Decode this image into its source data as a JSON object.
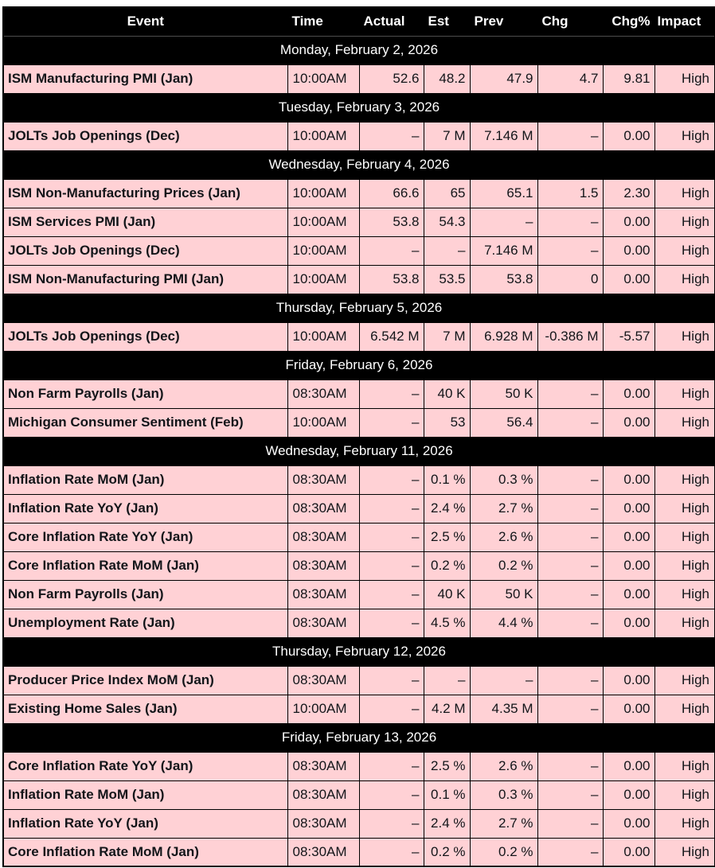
{
  "colors": {
    "header_bg": "#000000",
    "header_text": "#ffffff",
    "date_row_bg": "#000000",
    "date_row_text": "#ffffff",
    "event_row_bg": "#ffd1d5",
    "event_row_text": "#121519",
    "grid_border": "#000000"
  },
  "table": {
    "columns": [
      {
        "key": "event",
        "label": "Event"
      },
      {
        "key": "time",
        "label": "Time"
      },
      {
        "key": "actual",
        "label": "Actual"
      },
      {
        "key": "est",
        "label": "Est"
      },
      {
        "key": "prev",
        "label": "Prev"
      },
      {
        "key": "chg",
        "label": "Chg"
      },
      {
        "key": "chgpct",
        "label": "Chg%"
      },
      {
        "key": "impact",
        "label": "Impact"
      }
    ],
    "groups": [
      {
        "date": "Monday, February 2, 2026",
        "rows": [
          {
            "event": "ISM Manufacturing PMI (Jan)",
            "time": "10:00AM",
            "actual": "52.6",
            "est": "48.2",
            "prev": "47.9",
            "chg": "4.7",
            "chgpct": "9.81",
            "impact": "High"
          }
        ]
      },
      {
        "date": "Tuesday, February 3, 2026",
        "rows": [
          {
            "event": "JOLTs Job Openings (Dec)",
            "time": "10:00AM",
            "actual": "–",
            "est": "7 M",
            "prev": "7.146 M",
            "chg": "–",
            "chgpct": "0.00",
            "impact": "High"
          }
        ]
      },
      {
        "date": "Wednesday, February 4, 2026",
        "rows": [
          {
            "event": "ISM Non-Manufacturing Prices (Jan)",
            "time": "10:00AM",
            "actual": "66.6",
            "est": "65",
            "prev": "65.1",
            "chg": "1.5",
            "chgpct": "2.30",
            "impact": "High"
          },
          {
            "event": "ISM Services PMI (Jan)",
            "time": "10:00AM",
            "actual": "53.8",
            "est": "54.3",
            "prev": "–",
            "chg": "–",
            "chgpct": "0.00",
            "impact": "High"
          },
          {
            "event": "JOLTs Job Openings (Dec)",
            "time": "10:00AM",
            "actual": "–",
            "est": "–",
            "prev": "7.146 M",
            "chg": "–",
            "chgpct": "0.00",
            "impact": "High"
          },
          {
            "event": "ISM Non-Manufacturing PMI (Jan)",
            "time": "10:00AM",
            "actual": "53.8",
            "est": "53.5",
            "prev": "53.8",
            "chg": "0",
            "chgpct": "0.00",
            "impact": "High"
          }
        ]
      },
      {
        "date": "Thursday, February 5, 2026",
        "rows": [
          {
            "event": "JOLTs Job Openings (Dec)",
            "time": "10:00AM",
            "actual": "6.542 M",
            "est": "7 M",
            "prev": "6.928 M",
            "chg": "-0.386 M",
            "chgpct": "-5.57",
            "impact": "High"
          }
        ]
      },
      {
        "date": "Friday, February 6, 2026",
        "rows": [
          {
            "event": "Non Farm Payrolls (Jan)",
            "time": "08:30AM",
            "actual": "–",
            "est": "40 K",
            "prev": "50 K",
            "chg": "–",
            "chgpct": "0.00",
            "impact": "High"
          },
          {
            "event": "Michigan Consumer Sentiment (Feb)",
            "time": "10:00AM",
            "actual": "–",
            "est": "53",
            "prev": "56.4",
            "chg": "–",
            "chgpct": "0.00",
            "impact": "High"
          }
        ]
      },
      {
        "date": "Wednesday, February 11, 2026",
        "rows": [
          {
            "event": "Inflation Rate MoM (Jan)",
            "time": "08:30AM",
            "actual": "–",
            "est": "0.1 %",
            "prev": "0.3 %",
            "chg": "–",
            "chgpct": "0.00",
            "impact": "High"
          },
          {
            "event": "Inflation Rate YoY (Jan)",
            "time": "08:30AM",
            "actual": "–",
            "est": "2.4 %",
            "prev": "2.7 %",
            "chg": "–",
            "chgpct": "0.00",
            "impact": "High"
          },
          {
            "event": "Core Inflation Rate YoY (Jan)",
            "time": "08:30AM",
            "actual": "–",
            "est": "2.5 %",
            "prev": "2.6 %",
            "chg": "–",
            "chgpct": "0.00",
            "impact": "High"
          },
          {
            "event": "Core Inflation Rate MoM (Jan)",
            "time": "08:30AM",
            "actual": "–",
            "est": "0.2 %",
            "prev": "0.2 %",
            "chg": "–",
            "chgpct": "0.00",
            "impact": "High"
          },
          {
            "event": "Non Farm Payrolls (Jan)",
            "time": "08:30AM",
            "actual": "–",
            "est": "40 K",
            "prev": "50 K",
            "chg": "–",
            "chgpct": "0.00",
            "impact": "High"
          },
          {
            "event": "Unemployment Rate (Jan)",
            "time": "08:30AM",
            "actual": "–",
            "est": "4.5 %",
            "prev": "4.4 %",
            "chg": "–",
            "chgpct": "0.00",
            "impact": "High"
          }
        ]
      },
      {
        "date": "Thursday, February 12, 2026",
        "rows": [
          {
            "event": "Producer Price Index MoM (Jan)",
            "time": "08:30AM",
            "actual": "–",
            "est": "–",
            "prev": "–",
            "chg": "–",
            "chgpct": "0.00",
            "impact": "High"
          },
          {
            "event": "Existing Home Sales (Jan)",
            "time": "10:00AM",
            "actual": "–",
            "est": "4.2 M",
            "prev": "4.35 M",
            "chg": "–",
            "chgpct": "0.00",
            "impact": "High"
          }
        ]
      },
      {
        "date": "Friday, February 13, 2026",
        "rows": [
          {
            "event": "Core Inflation Rate YoY (Jan)",
            "time": "08:30AM",
            "actual": "–",
            "est": "2.5 %",
            "prev": "2.6 %",
            "chg": "–",
            "chgpct": "0.00",
            "impact": "High"
          },
          {
            "event": "Inflation Rate MoM (Jan)",
            "time": "08:30AM",
            "actual": "–",
            "est": "0.1 %",
            "prev": "0.3 %",
            "chg": "–",
            "chgpct": "0.00",
            "impact": "High"
          },
          {
            "event": "Inflation Rate YoY (Jan)",
            "time": "08:30AM",
            "actual": "–",
            "est": "2.4 %",
            "prev": "2.7 %",
            "chg": "–",
            "chgpct": "0.00",
            "impact": "High"
          },
          {
            "event": "Core Inflation Rate MoM (Jan)",
            "time": "08:30AM",
            "actual": "–",
            "est": "0.2 %",
            "prev": "0.2 %",
            "chg": "–",
            "chgpct": "0.00",
            "impact": "High"
          }
        ]
      }
    ]
  }
}
